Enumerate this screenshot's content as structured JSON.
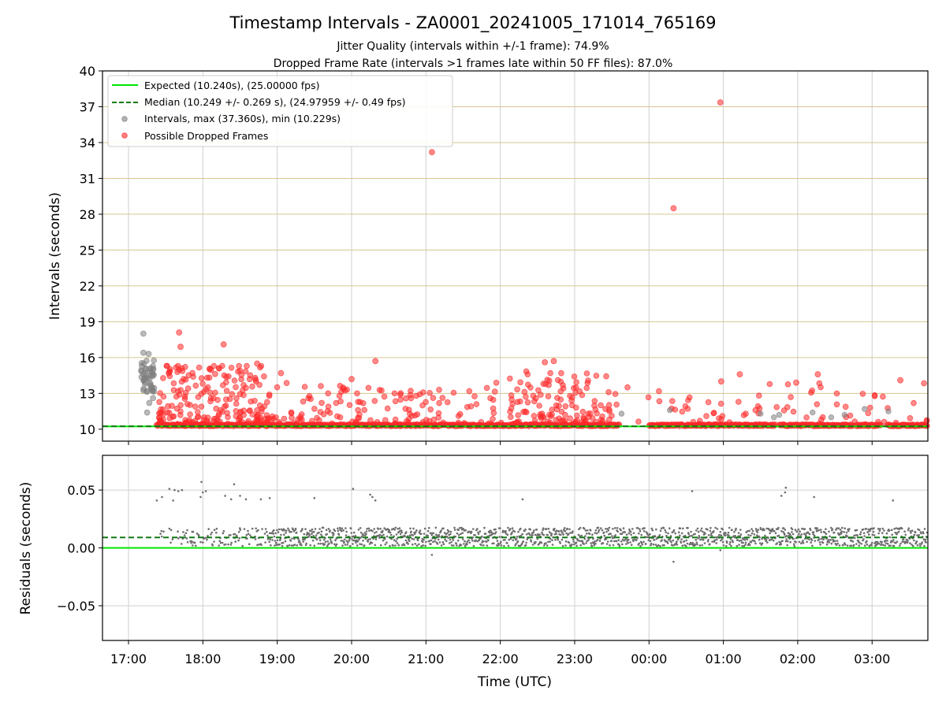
{
  "chart_data": {
    "type": "scatter",
    "title": "Timestamp Intervals - ZA0001_20241005_171014_765169",
    "subtitle_lines": [
      "Jitter Quality (intervals within +/-1 frame): 74.9%",
      "Dropped Frame Rate (intervals >1 frames late within 50 FF files): 87.0%"
    ],
    "xlabel": "Time (UTC)",
    "x_ticks": [
      "17:00",
      "18:00",
      "19:00",
      "20:00",
      "21:00",
      "22:00",
      "23:00",
      "00:00",
      "01:00",
      "02:00",
      "03:00"
    ],
    "x_range_hours": [
      16.65,
      27.75
    ],
    "top": {
      "ylabel": "Intervals (seconds)",
      "ylim": [
        9.0,
        40.0
      ],
      "yticks": [
        10,
        13,
        16,
        19,
        22,
        25,
        28,
        31,
        34,
        37,
        40
      ],
      "grid": "horizontal lines at y ticks 13-40 (tan), vertical at x ticks (gray)",
      "legend_position": "top-left",
      "legend": [
        "Expected (10.240s), (25.00000 fps)",
        "Median (10.249 +/- 0.269 s), (24.97959 +/- 0.49 fps)",
        "Intervals, max (37.360s), min (10.229s)",
        "Possible Dropped Frames"
      ],
      "expected": 10.24,
      "median": 10.249,
      "intervals_max": 37.36,
      "intervals_min": 10.229,
      "dropped_frames_outliers": [
        {
          "x": 21.08,
          "y": 33.2
        },
        {
          "x": 24.33,
          "y": 28.5
        },
        {
          "x": 24.96,
          "y": 37.36
        },
        {
          "x": 17.68,
          "y": 18.1
        },
        {
          "x": 18.28,
          "y": 17.1
        },
        {
          "x": 17.7,
          "y": 16.9
        },
        {
          "x": 20.32,
          "y": 15.7
        },
        {
          "x": 22.72,
          "y": 15.7
        },
        {
          "x": 18.73,
          "y": 15.5
        },
        {
          "x": 22.6,
          "y": 15.6
        },
        {
          "x": 19.05,
          "y": 14.7
        },
        {
          "x": 25.22,
          "y": 14.6
        },
        {
          "x": 26.27,
          "y": 14.6
        },
        {
          "x": 24.97,
          "y": 14.0
        },
        {
          "x": 25.98,
          "y": 13.9
        },
        {
          "x": 27.38,
          "y": 14.1
        },
        {
          "x": 20.0,
          "y": 14.2
        }
      ],
      "gray_cluster_start": [
        {
          "x": 17.2,
          "y": 18.0
        },
        {
          "x": 17.2,
          "y": 16.4
        },
        {
          "x": 17.27,
          "y": 16.3
        },
        {
          "x": 17.18,
          "y": 15.3
        },
        {
          "x": 17.23,
          "y": 15.0
        },
        {
          "x": 17.3,
          "y": 15.1
        },
        {
          "x": 17.2,
          "y": 14.6
        },
        {
          "x": 17.26,
          "y": 14.3
        },
        {
          "x": 17.22,
          "y": 13.8
        },
        {
          "x": 17.3,
          "y": 13.6
        },
        {
          "x": 17.33,
          "y": 12.6
        },
        {
          "x": 17.28,
          "y": 12.2
        },
        {
          "x": 17.25,
          "y": 11.4
        }
      ]
    },
    "bottom": {
      "ylabel": "Residuals (seconds)",
      "ylim": [
        -0.08,
        0.08
      ],
      "yticks": [
        0.05,
        0.0,
        -0.05
      ],
      "ytick_labels": [
        "0.05",
        "0.00",
        "−0.05"
      ],
      "expected_residual": 0.0,
      "median_residual": 0.009,
      "outliers": [
        {
          "x": 17.38,
          "y": 0.041
        },
        {
          "x": 17.45,
          "y": 0.044
        },
        {
          "x": 17.55,
          "y": 0.051
        },
        {
          "x": 17.62,
          "y": 0.05
        },
        {
          "x": 17.67,
          "y": 0.049
        },
        {
          "x": 17.72,
          "y": 0.05
        },
        {
          "x": 17.6,
          "y": 0.041
        },
        {
          "x": 17.98,
          "y": 0.057
        },
        {
          "x": 18.0,
          "y": 0.048
        },
        {
          "x": 18.04,
          "y": 0.049
        },
        {
          "x": 17.97,
          "y": 0.044
        },
        {
          "x": 18.3,
          "y": 0.045
        },
        {
          "x": 18.38,
          "y": 0.042
        },
        {
          "x": 18.42,
          "y": 0.055
        },
        {
          "x": 18.5,
          "y": 0.045
        },
        {
          "x": 18.58,
          "y": 0.042
        },
        {
          "x": 18.78,
          "y": 0.042
        },
        {
          "x": 18.9,
          "y": 0.043
        },
        {
          "x": 19.5,
          "y": 0.043
        },
        {
          "x": 20.02,
          "y": 0.051
        },
        {
          "x": 20.25,
          "y": 0.046
        },
        {
          "x": 20.28,
          "y": 0.044
        },
        {
          "x": 20.32,
          "y": 0.041
        },
        {
          "x": 22.3,
          "y": 0.042
        },
        {
          "x": 24.58,
          "y": 0.049
        },
        {
          "x": 25.78,
          "y": 0.045
        },
        {
          "x": 25.83,
          "y": 0.048
        },
        {
          "x": 25.84,
          "y": 0.052
        },
        {
          "x": 26.22,
          "y": 0.044
        },
        {
          "x": 27.28,
          "y": 0.041
        },
        {
          "x": 21.08,
          "y": -0.006
        },
        {
          "x": 24.33,
          "y": -0.012
        },
        {
          "x": 24.96,
          "y": -0.002
        }
      ]
    },
    "colors": {
      "expected": "#00e600",
      "median": "#127a12",
      "intervals": "#808080",
      "dropped": "#ff2a2a",
      "hgrid": "#d6c690",
      "vgrid": "#cfcfcf"
    }
  }
}
